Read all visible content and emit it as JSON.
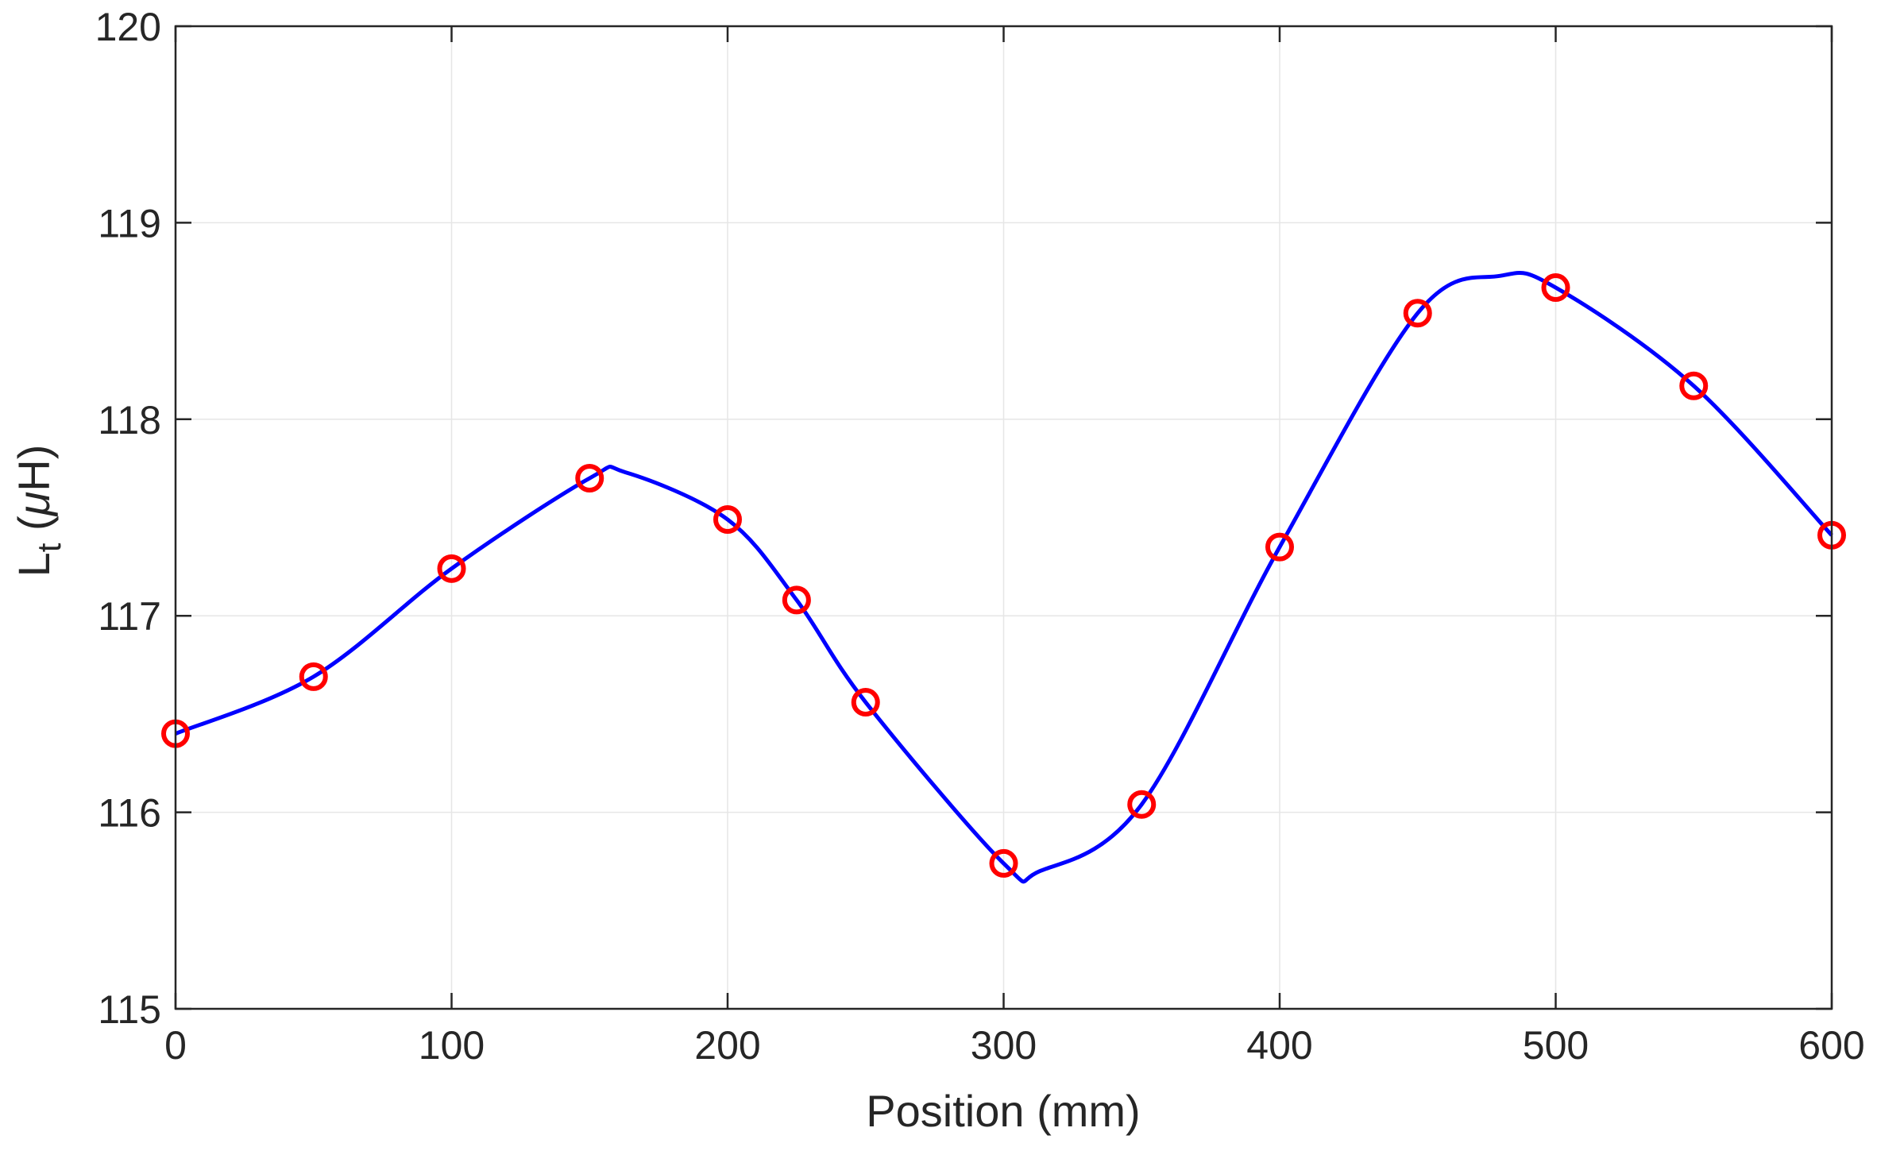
{
  "chart_data": {
    "type": "line",
    "xlabel": "Position (mm)",
    "ylabel": {
      "main": "L",
      "subscript": "t",
      "unit_open": " (",
      "unit_greek": "μ",
      "unit_rest": "H)"
    },
    "xlim": [
      0,
      600
    ],
    "ylim": [
      115,
      120
    ],
    "x_ticks": [
      0,
      100,
      200,
      300,
      400,
      500,
      600
    ],
    "y_ticks": [
      115,
      116,
      117,
      118,
      119,
      120
    ],
    "grid": true,
    "series": [
      {
        "style": "markers",
        "marker": "circle",
        "color": "#ff0000",
        "x": [
          0,
          50,
          100,
          150,
          200,
          225,
          250,
          300,
          350,
          400,
          450,
          500,
          550,
          600
        ],
        "y": [
          116.4,
          116.69,
          117.24,
          117.7,
          117.49,
          117.08,
          116.56,
          115.74,
          116.04,
          117.35,
          118.54,
          118.67,
          118.17,
          117.41
        ]
      },
      {
        "style": "line",
        "color": "#0000ff",
        "x": [
          0,
          50,
          100,
          150,
          163,
          200,
          225,
          250,
          300,
          313,
          350,
          400,
          450,
          480,
          500,
          550,
          600
        ],
        "y": [
          116.4,
          116.69,
          117.24,
          117.7,
          117.73,
          117.49,
          117.08,
          116.56,
          115.74,
          115.7,
          116.04,
          117.35,
          118.54,
          118.73,
          118.67,
          118.17,
          117.41
        ]
      }
    ]
  }
}
